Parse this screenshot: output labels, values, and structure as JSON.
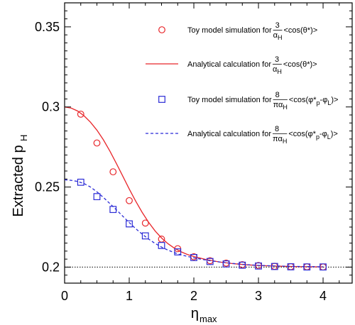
{
  "chart_data": {
    "type": "line",
    "xlabel": "η",
    "xlabel_sub": "max",
    "ylabel": "Extracted p",
    "ylabel_sub": "H",
    "xlim": [
      0,
      4.45
    ],
    "ylim": [
      0.19,
      0.365
    ],
    "xticks": [
      0,
      1,
      2,
      3,
      4
    ],
    "xtick_labels": [
      "0",
      "1",
      "2",
      "3",
      "4"
    ],
    "yticks": [
      0.2,
      0.25,
      0.3,
      0.35
    ],
    "ytick_labels": [
      "0.2",
      "0.25",
      "0.3",
      "0.35"
    ],
    "reference_line": {
      "y": 0.2,
      "style": "dotted",
      "color": "#000000"
    },
    "series": [
      {
        "key": "toy_cos_theta",
        "kind": "markers",
        "marker": "circle",
        "color": "#e8262a",
        "x": [
          0.25,
          0.5,
          0.75,
          1.0,
          1.25,
          1.5,
          1.75,
          2.0,
          2.25,
          2.5,
          2.75,
          3.0,
          3.25,
          3.5,
          3.75,
          4.0
        ],
        "y": [
          0.2955,
          0.2775,
          0.2595,
          0.2415,
          0.2275,
          0.2175,
          0.2115,
          0.2065,
          0.204,
          0.2025,
          0.2015,
          0.201,
          0.2005,
          0.2003,
          0.2002,
          0.2001
        ]
      },
      {
        "key": "analytic_cos_theta",
        "kind": "line",
        "style": "solid",
        "color": "#e8262a",
        "x": [
          0,
          0.1,
          0.2,
          0.3,
          0.4,
          0.5,
          0.6,
          0.7,
          0.8,
          0.9,
          1.0,
          1.1,
          1.2,
          1.3,
          1.4,
          1.5,
          1.6,
          1.7,
          1.8,
          1.9,
          2.0,
          2.2,
          2.4,
          2.6,
          2.8,
          3.0,
          3.3,
          3.6,
          4.0
        ],
        "y": [
          0.3,
          0.2993,
          0.2975,
          0.2945,
          0.2905,
          0.2855,
          0.2795,
          0.2725,
          0.2648,
          0.2568,
          0.2488,
          0.2412,
          0.2342,
          0.228,
          0.2226,
          0.2182,
          0.2146,
          0.2118,
          0.2096,
          0.2079,
          0.2066,
          0.2046,
          0.2032,
          0.2022,
          0.2015,
          0.201,
          0.2006,
          0.2003,
          0.2001
        ]
      },
      {
        "key": "toy_cos_phi",
        "kind": "markers",
        "marker": "square",
        "color": "#2b2bd6",
        "x": [
          0.25,
          0.5,
          0.75,
          1.0,
          1.25,
          1.5,
          1.75,
          2.0,
          2.25,
          2.5,
          2.75,
          3.0,
          3.25,
          3.5,
          3.75,
          4.0
        ],
        "y": [
          0.253,
          0.244,
          0.236,
          0.227,
          0.2195,
          0.2135,
          0.2095,
          0.206,
          0.2035,
          0.202,
          0.2012,
          0.2007,
          0.2004,
          0.2002,
          0.2001,
          0.2001
        ]
      },
      {
        "key": "analytic_cos_phi",
        "kind": "line",
        "style": "dashed",
        "color": "#2b2bd6",
        "x": [
          0,
          0.1,
          0.2,
          0.3,
          0.4,
          0.5,
          0.6,
          0.7,
          0.8,
          0.9,
          1.0,
          1.1,
          1.2,
          1.3,
          1.4,
          1.5,
          1.6,
          1.7,
          1.8,
          1.9,
          2.0,
          2.2,
          2.4,
          2.6,
          2.8,
          3.0,
          3.3,
          3.6,
          4.0
        ],
        "y": [
          0.2545,
          0.2542,
          0.2535,
          0.2522,
          0.25,
          0.247,
          0.2435,
          0.2397,
          0.2358,
          0.2318,
          0.2278,
          0.224,
          0.2206,
          0.2175,
          0.2148,
          0.2125,
          0.2106,
          0.209,
          0.2077,
          0.2067,
          0.2058,
          0.2043,
          0.2032,
          0.2023,
          0.2016,
          0.2011,
          0.2007,
          0.2004,
          0.2002
        ]
      }
    ],
    "legend": {
      "placement": "top-right",
      "entries": [
        {
          "series": "toy_cos_theta",
          "prefix": "Toy model simulation for ",
          "frac_num": "3",
          "frac_den": "α",
          "frac_den_sub": "H",
          "tail": "<cos(θ*)>"
        },
        {
          "series": "analytic_cos_theta",
          "prefix": "Analytical calculation for ",
          "frac_num": "3",
          "frac_den": "α",
          "frac_den_sub": "H",
          "tail": "<cos(θ*)>"
        },
        {
          "series": "toy_cos_phi",
          "prefix": "Toy model simulation for ",
          "frac_num": "8",
          "frac_den": "πα",
          "frac_den_sub": "H",
          "tail_a": "<cos(φ*",
          "tail_sub1": "p",
          "tail_b": "-φ",
          "tail_sub2": "L",
          "tail_c": ")>"
        },
        {
          "series": "analytic_cos_phi",
          "prefix": "Analytical calculation for ",
          "frac_num": "8",
          "frac_den": "πα",
          "frac_den_sub": "H",
          "tail_a": "<cos(φ*",
          "tail_sub1": "p",
          "tail_b": "-φ",
          "tail_sub2": "L",
          "tail_c": ")>"
        }
      ]
    }
  }
}
